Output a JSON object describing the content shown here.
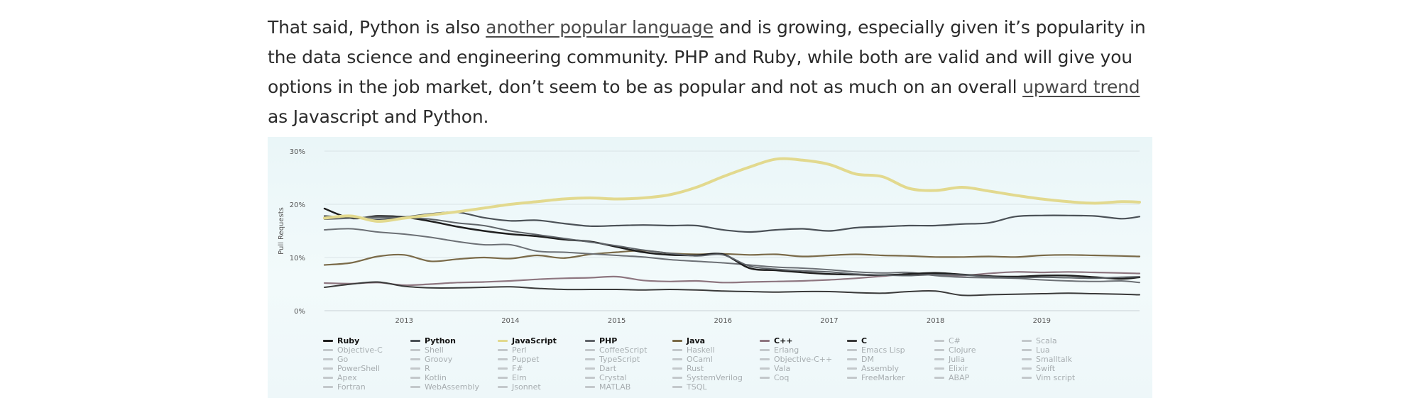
{
  "article": {
    "p1": "That said, Python is also ",
    "link1": "another popular language",
    "p2": " and is growing, especially given it’s popularity in the data science and engineering community. PHP and Ruby, while both are valid and will give you options in the job market, don’t seem to be as popular and not as much on an overall ",
    "link2": "upward trend",
    "p3": " as Javascript and Python."
  },
  "chart_data": {
    "type": "line",
    "title": "",
    "xlabel": "",
    "ylabel": "Pull Requests",
    "xlim": [
      2012.25,
      2019.92
    ],
    "ylim": [
      0,
      30
    ],
    "yticks": [
      {
        "v": 0,
        "label": "0%"
      },
      {
        "v": 10,
        "label": "10%"
      },
      {
        "v": 20,
        "label": "20%"
      },
      {
        "v": 30,
        "label": "30%"
      }
    ],
    "xticks": [
      {
        "v": 2013,
        "label": "2013"
      },
      {
        "v": 2014,
        "label": "2014"
      },
      {
        "v": 2015,
        "label": "2015"
      },
      {
        "v": 2016,
        "label": "2016"
      },
      {
        "v": 2017,
        "label": "2017"
      },
      {
        "v": 2018,
        "label": "2018"
      },
      {
        "v": 2019,
        "label": "2019"
      }
    ],
    "grid": true,
    "series": [
      {
        "name": "Java",
        "color": "#7a6a48",
        "width": 2.2,
        "x": [
          2012.25,
          2012.5,
          2012.75,
          2013,
          2013.25,
          2013.5,
          2013.75,
          2014,
          2014.25,
          2014.5,
          2014.75,
          2015,
          2015.25,
          2015.5,
          2015.75,
          2016,
          2016.25,
          2016.5,
          2016.75,
          2017,
          2017.25,
          2017.5,
          2017.75,
          2018,
          2018.25,
          2018.5,
          2018.75,
          2019,
          2019.25,
          2019.5,
          2019.75,
          2019.92
        ],
        "y": [
          8.6,
          9,
          10.2,
          10.5,
          9.3,
          9.7,
          10,
          9.8,
          10.4,
          9.9,
          10.6,
          11,
          11.3,
          10.8,
          10.6,
          10.7,
          10.5,
          10.6,
          10.2,
          10.4,
          10.6,
          10.4,
          10.3,
          10.1,
          10.1,
          10.2,
          10.1,
          10.4,
          10.5,
          10.4,
          10.3,
          10.2
        ]
      },
      {
        "name": "C++",
        "color": "#8e7680",
        "width": 2.2,
        "x": [
          2012.25,
          2012.5,
          2012.75,
          2013,
          2013.25,
          2013.5,
          2013.75,
          2014,
          2014.25,
          2014.5,
          2014.75,
          2015,
          2015.25,
          2015.5,
          2015.75,
          2016,
          2016.25,
          2016.5,
          2016.75,
          2017,
          2017.25,
          2017.5,
          2017.75,
          2018,
          2018.25,
          2018.5,
          2018.75,
          2019,
          2019.25,
          2019.5,
          2019.75,
          2019.92
        ],
        "y": [
          5.2,
          5.1,
          5.3,
          4.8,
          5,
          5.3,
          5.4,
          5.6,
          5.9,
          6.1,
          6.2,
          6.4,
          5.7,
          5.5,
          5.6,
          5.3,
          5.4,
          5.5,
          5.6,
          5.8,
          6.1,
          6.5,
          6.9,
          6.8,
          6.6,
          7,
          7.3,
          7.2,
          7.3,
          7.2,
          7.1,
          7
        ]
      },
      {
        "name": "Python",
        "color": "#4b5157",
        "width": 2.2,
        "x": [
          2012.25,
          2012.5,
          2012.75,
          2013,
          2013.25,
          2013.5,
          2013.75,
          2014,
          2014.25,
          2014.5,
          2014.75,
          2015,
          2015.25,
          2015.5,
          2015.75,
          2016,
          2016.25,
          2016.5,
          2016.75,
          2017,
          2017.25,
          2017.5,
          2017.75,
          2018,
          2018.25,
          2018.5,
          2018.75,
          2019,
          2019.25,
          2019.5,
          2019.75,
          2019.92
        ],
        "y": [
          17.8,
          17.5,
          17.2,
          17.6,
          18.2,
          18.5,
          17.5,
          16.9,
          17,
          16.4,
          15.9,
          16,
          16.1,
          16,
          16,
          15.2,
          14.8,
          15.2,
          15.4,
          15,
          15.6,
          15.8,
          16,
          16,
          16.3,
          16.5,
          17.7,
          17.9,
          17.9,
          17.8,
          17.3,
          17.7
        ]
      },
      {
        "name": "Go",
        "color": "#6c7075",
        "width": 2,
        "x": [
          2012.25,
          2012.5,
          2012.75,
          2013,
          2013.25,
          2013.5,
          2013.75,
          2014,
          2014.25,
          2014.5,
          2014.75,
          2015,
          2015.25,
          2015.5,
          2015.75,
          2016,
          2016.25,
          2016.5,
          2016.75,
          2017,
          2017.25,
          2017.5,
          2017.75,
          2018,
          2018.25,
          2018.5,
          2018.75,
          2019,
          2019.25,
          2019.5,
          2019.75,
          2019.92
        ],
        "y": [
          15.2,
          15.4,
          14.8,
          14.4,
          13.8,
          13,
          12.4,
          12.4,
          11.2,
          11,
          10.7,
          10.4,
          10.1,
          9.6,
          9.3,
          9,
          8.6,
          8.2,
          8,
          7.7,
          7.3,
          7.1,
          7.2,
          6.6,
          6.3,
          6.2,
          6.1,
          5.8,
          5.6,
          5.5,
          5.6,
          5.3
        ]
      },
      {
        "name": "Ruby",
        "color": "#1f1f1f",
        "width": 2.5,
        "x": [
          2012.25,
          2012.5,
          2012.75,
          2013,
          2013.25,
          2013.5,
          2013.75,
          2014,
          2014.25,
          2014.5,
          2014.75,
          2015,
          2015.25,
          2015.5,
          2015.75,
          2016,
          2016.25,
          2016.5,
          2016.75,
          2017,
          2017.25,
          2017.5,
          2017.75,
          2018,
          2018.25,
          2018.5,
          2018.75,
          2019,
          2019.25,
          2019.5,
          2019.75,
          2019.92
        ],
        "y": [
          19.2,
          17.4,
          17.8,
          17.6,
          16.8,
          15.8,
          15,
          14.4,
          14,
          13.4,
          13,
          12,
          11,
          10.5,
          10.4,
          10.6,
          8,
          7.6,
          7.2,
          6.9,
          6.8,
          6.7,
          6.9,
          7.1,
          6.8,
          6.5,
          6.4,
          6.6,
          6.6,
          6.3,
          6,
          6.3
        ]
      },
      {
        "name": "C",
        "color": "#3a3a3a",
        "width": 2,
        "x": [
          2012.25,
          2012.5,
          2012.75,
          2013,
          2013.25,
          2013.5,
          2013.75,
          2014,
          2014.25,
          2014.5,
          2014.75,
          2015,
          2015.25,
          2015.5,
          2015.75,
          2016,
          2016.25,
          2016.5,
          2016.75,
          2017,
          2017.25,
          2017.5,
          2017.75,
          2018,
          2018.25,
          2018.5,
          2018.75,
          2019,
          2019.25,
          2019.5,
          2019.75,
          2019.92
        ],
        "y": [
          4.4,
          5,
          5.4,
          4.6,
          4.3,
          4.3,
          4.4,
          4.5,
          4.2,
          4,
          4,
          4,
          3.9,
          4,
          3.9,
          3.7,
          3.6,
          3.5,
          3.6,
          3.6,
          3.4,
          3.3,
          3.6,
          3.7,
          2.9,
          3,
          3.1,
          3.2,
          3.3,
          3.2,
          3.1,
          3
        ]
      },
      {
        "name": "PHP",
        "color": "#5f6469",
        "width": 2,
        "x": [
          2012.25,
          2012.5,
          2012.75,
          2013,
          2013.25,
          2013.5,
          2013.75,
          2014,
          2014.25,
          2014.5,
          2014.75,
          2015,
          2015.25,
          2015.5,
          2015.75,
          2016,
          2016.25,
          2016.5,
          2016.75,
          2017,
          2017.25,
          2017.5,
          2017.75,
          2018,
          2018.25,
          2018.5,
          2018.75,
          2019,
          2019.25,
          2019.5,
          2019.75,
          2019.92
        ],
        "y": [
          17.2,
          17.4,
          17.6,
          17.5,
          17.2,
          16.5,
          16,
          15,
          14.3,
          13.6,
          12.9,
          12.2,
          11.4,
          10.8,
          10.3,
          10.5,
          8.4,
          7.8,
          7.5,
          7.3,
          6.9,
          6.7,
          6.6,
          6.8,
          6.7,
          6.4,
          6.2,
          6.3,
          6.2,
          6.1,
          6.3,
          6.4
        ]
      },
      {
        "name": "JavaScript",
        "color": "#e2d98e",
        "width": 4,
        "x": [
          2012.25,
          2012.5,
          2012.75,
          2013,
          2013.25,
          2013.5,
          2013.75,
          2014,
          2014.25,
          2014.5,
          2014.75,
          2015,
          2015.25,
          2015.5,
          2015.75,
          2016,
          2016.25,
          2016.5,
          2016.75,
          2017,
          2017.25,
          2017.5,
          2017.75,
          2018,
          2018.25,
          2018.5,
          2018.75,
          2019,
          2019.25,
          2019.5,
          2019.75,
          2019.92
        ],
        "y": [
          17.4,
          17.8,
          16.8,
          17.4,
          18,
          18.6,
          19.3,
          20,
          20.5,
          21,
          21.2,
          21,
          21.2,
          21.8,
          23.2,
          25.2,
          27,
          28.5,
          28.3,
          27.5,
          25.7,
          25.2,
          23,
          22.6,
          23.2,
          22.5,
          21.7,
          21,
          20.5,
          20.2,
          20.5,
          20.4
        ]
      }
    ],
    "legend": {
      "placement": "bottom",
      "columns": [
        {
          "main": {
            "name": "Ruby",
            "color": "#1f1f1f"
          },
          "items": [
            "Objective-C",
            "Go",
            "PowerShell",
            "Apex",
            "Fortran"
          ]
        },
        {
          "main": {
            "name": "Python",
            "color": "#4b5157"
          },
          "items": [
            "Shell",
            "Groovy",
            "R",
            "Kotlin",
            "WebAssembly"
          ]
        },
        {
          "main": {
            "name": "JavaScript",
            "color": "#e2d98e"
          },
          "items": [
            "Perl",
            "Puppet",
            "F#",
            "Elm",
            "Jsonnet"
          ]
        },
        {
          "main": {
            "name": "PHP",
            "color": "#5f6469"
          },
          "items": [
            "CoffeeScript",
            "TypeScript",
            "Dart",
            "Crystal",
            "MATLAB"
          ]
        },
        {
          "main": {
            "name": "Java",
            "color": "#7a6a48"
          },
          "items": [
            "Haskell",
            "OCaml",
            "Rust",
            "SystemVerilog",
            "TSQL"
          ]
        },
        {
          "main": {
            "name": "C++",
            "color": "#8e7680"
          },
          "items": [
            "Erlang",
            "Objective-C++",
            "Vala",
            "Coq"
          ]
        },
        {
          "main": {
            "name": "C",
            "color": "#3a3a3a"
          },
          "items": [
            "Emacs Lisp",
            "DM",
            "Assembly",
            "FreeMarker"
          ]
        },
        {
          "main": {
            "name": "C#",
            "color": "#c3c8cb",
            "muted": true
          },
          "items": [
            "Clojure",
            "Julia",
            "Elixir",
            "ABAP"
          ]
        },
        {
          "main": {
            "name": "Scala",
            "color": "#c3c8cb",
            "muted": true
          },
          "items": [
            "Lua",
            "Smalltalk",
            "Swift",
            "Vim script"
          ]
        }
      ]
    }
  }
}
